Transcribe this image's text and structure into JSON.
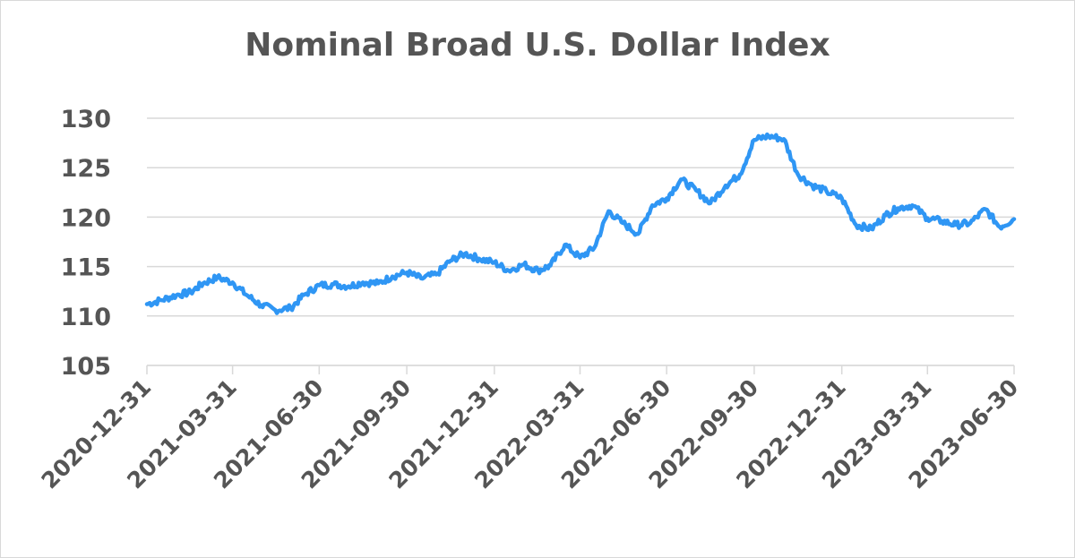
{
  "chart_data": {
    "type": "line",
    "title": "Nominal Broad U.S. Dollar Index",
    "xlabel": "",
    "ylabel": "",
    "ylim": [
      105,
      130
    ],
    "yticks": [
      "105",
      "110",
      "115",
      "120",
      "125",
      "130"
    ],
    "xlim": [
      "2020-12-31",
      "2023-06-30"
    ],
    "xticks": [
      "2020-12-31",
      "2021-03-31",
      "2021-06-30",
      "2021-09-30",
      "2021-12-31",
      "2022-03-31",
      "2022-06-30",
      "2022-09-30",
      "2022-12-31",
      "2023-03-31",
      "2023-06-30"
    ],
    "grid": "horizontal",
    "legend": "none",
    "line_color": "#2f96f4",
    "series": [
      {
        "x": [
          "2020-12-31",
          "2021-01-15",
          "2021-01-31",
          "2021-02-15",
          "2021-02-28",
          "2021-03-15",
          "2021-03-31",
          "2021-04-15",
          "2021-04-30",
          "2021-05-15",
          "2021-05-31",
          "2021-06-15",
          "2021-06-30",
          "2021-07-15",
          "2021-07-31",
          "2021-08-15",
          "2021-08-31",
          "2021-09-15",
          "2021-09-30",
          "2021-10-15",
          "2021-10-31",
          "2021-11-15",
          "2021-11-30",
          "2021-12-15",
          "2021-12-31",
          "2022-01-15",
          "2022-01-31",
          "2022-02-15",
          "2022-02-28",
          "2022-03-15",
          "2022-03-31",
          "2022-04-15",
          "2022-04-30",
          "2022-05-15",
          "2022-05-31",
          "2022-06-15",
          "2022-06-30",
          "2022-07-15",
          "2022-07-31",
          "2022-08-15",
          "2022-08-31",
          "2022-09-15",
          "2022-09-30",
          "2022-10-15",
          "2022-10-31",
          "2022-11-15",
          "2022-11-30",
          "2022-12-15",
          "2022-12-31",
          "2023-01-15",
          "2023-01-31",
          "2023-02-15",
          "2023-02-28",
          "2023-03-15",
          "2023-03-31",
          "2023-04-15",
          "2023-04-30",
          "2023-05-15",
          "2023-05-31",
          "2023-06-15",
          "2023-06-30"
        ],
        "values": [
          111.2,
          111.6,
          112.1,
          112.4,
          113.3,
          113.9,
          113.4,
          112.1,
          111.1,
          110.6,
          110.8,
          112.2,
          113.1,
          113.2,
          113.0,
          113.4,
          113.3,
          114.0,
          114.4,
          113.8,
          114.2,
          115.6,
          116.3,
          115.8,
          115.4,
          114.6,
          115.2,
          114.6,
          115.1,
          117.2,
          115.9,
          116.9,
          120.6,
          119.4,
          118.3,
          121.2,
          121.9,
          123.8,
          122.7,
          121.4,
          123.2,
          124.3,
          127.8,
          128.2,
          127.9,
          124.3,
          123.2,
          122.6,
          121.9,
          119.2,
          118.8,
          120.2,
          120.9,
          121.2,
          119.9,
          119.6,
          119.2,
          119.4,
          120.8,
          119.0,
          119.8
        ]
      }
    ]
  }
}
